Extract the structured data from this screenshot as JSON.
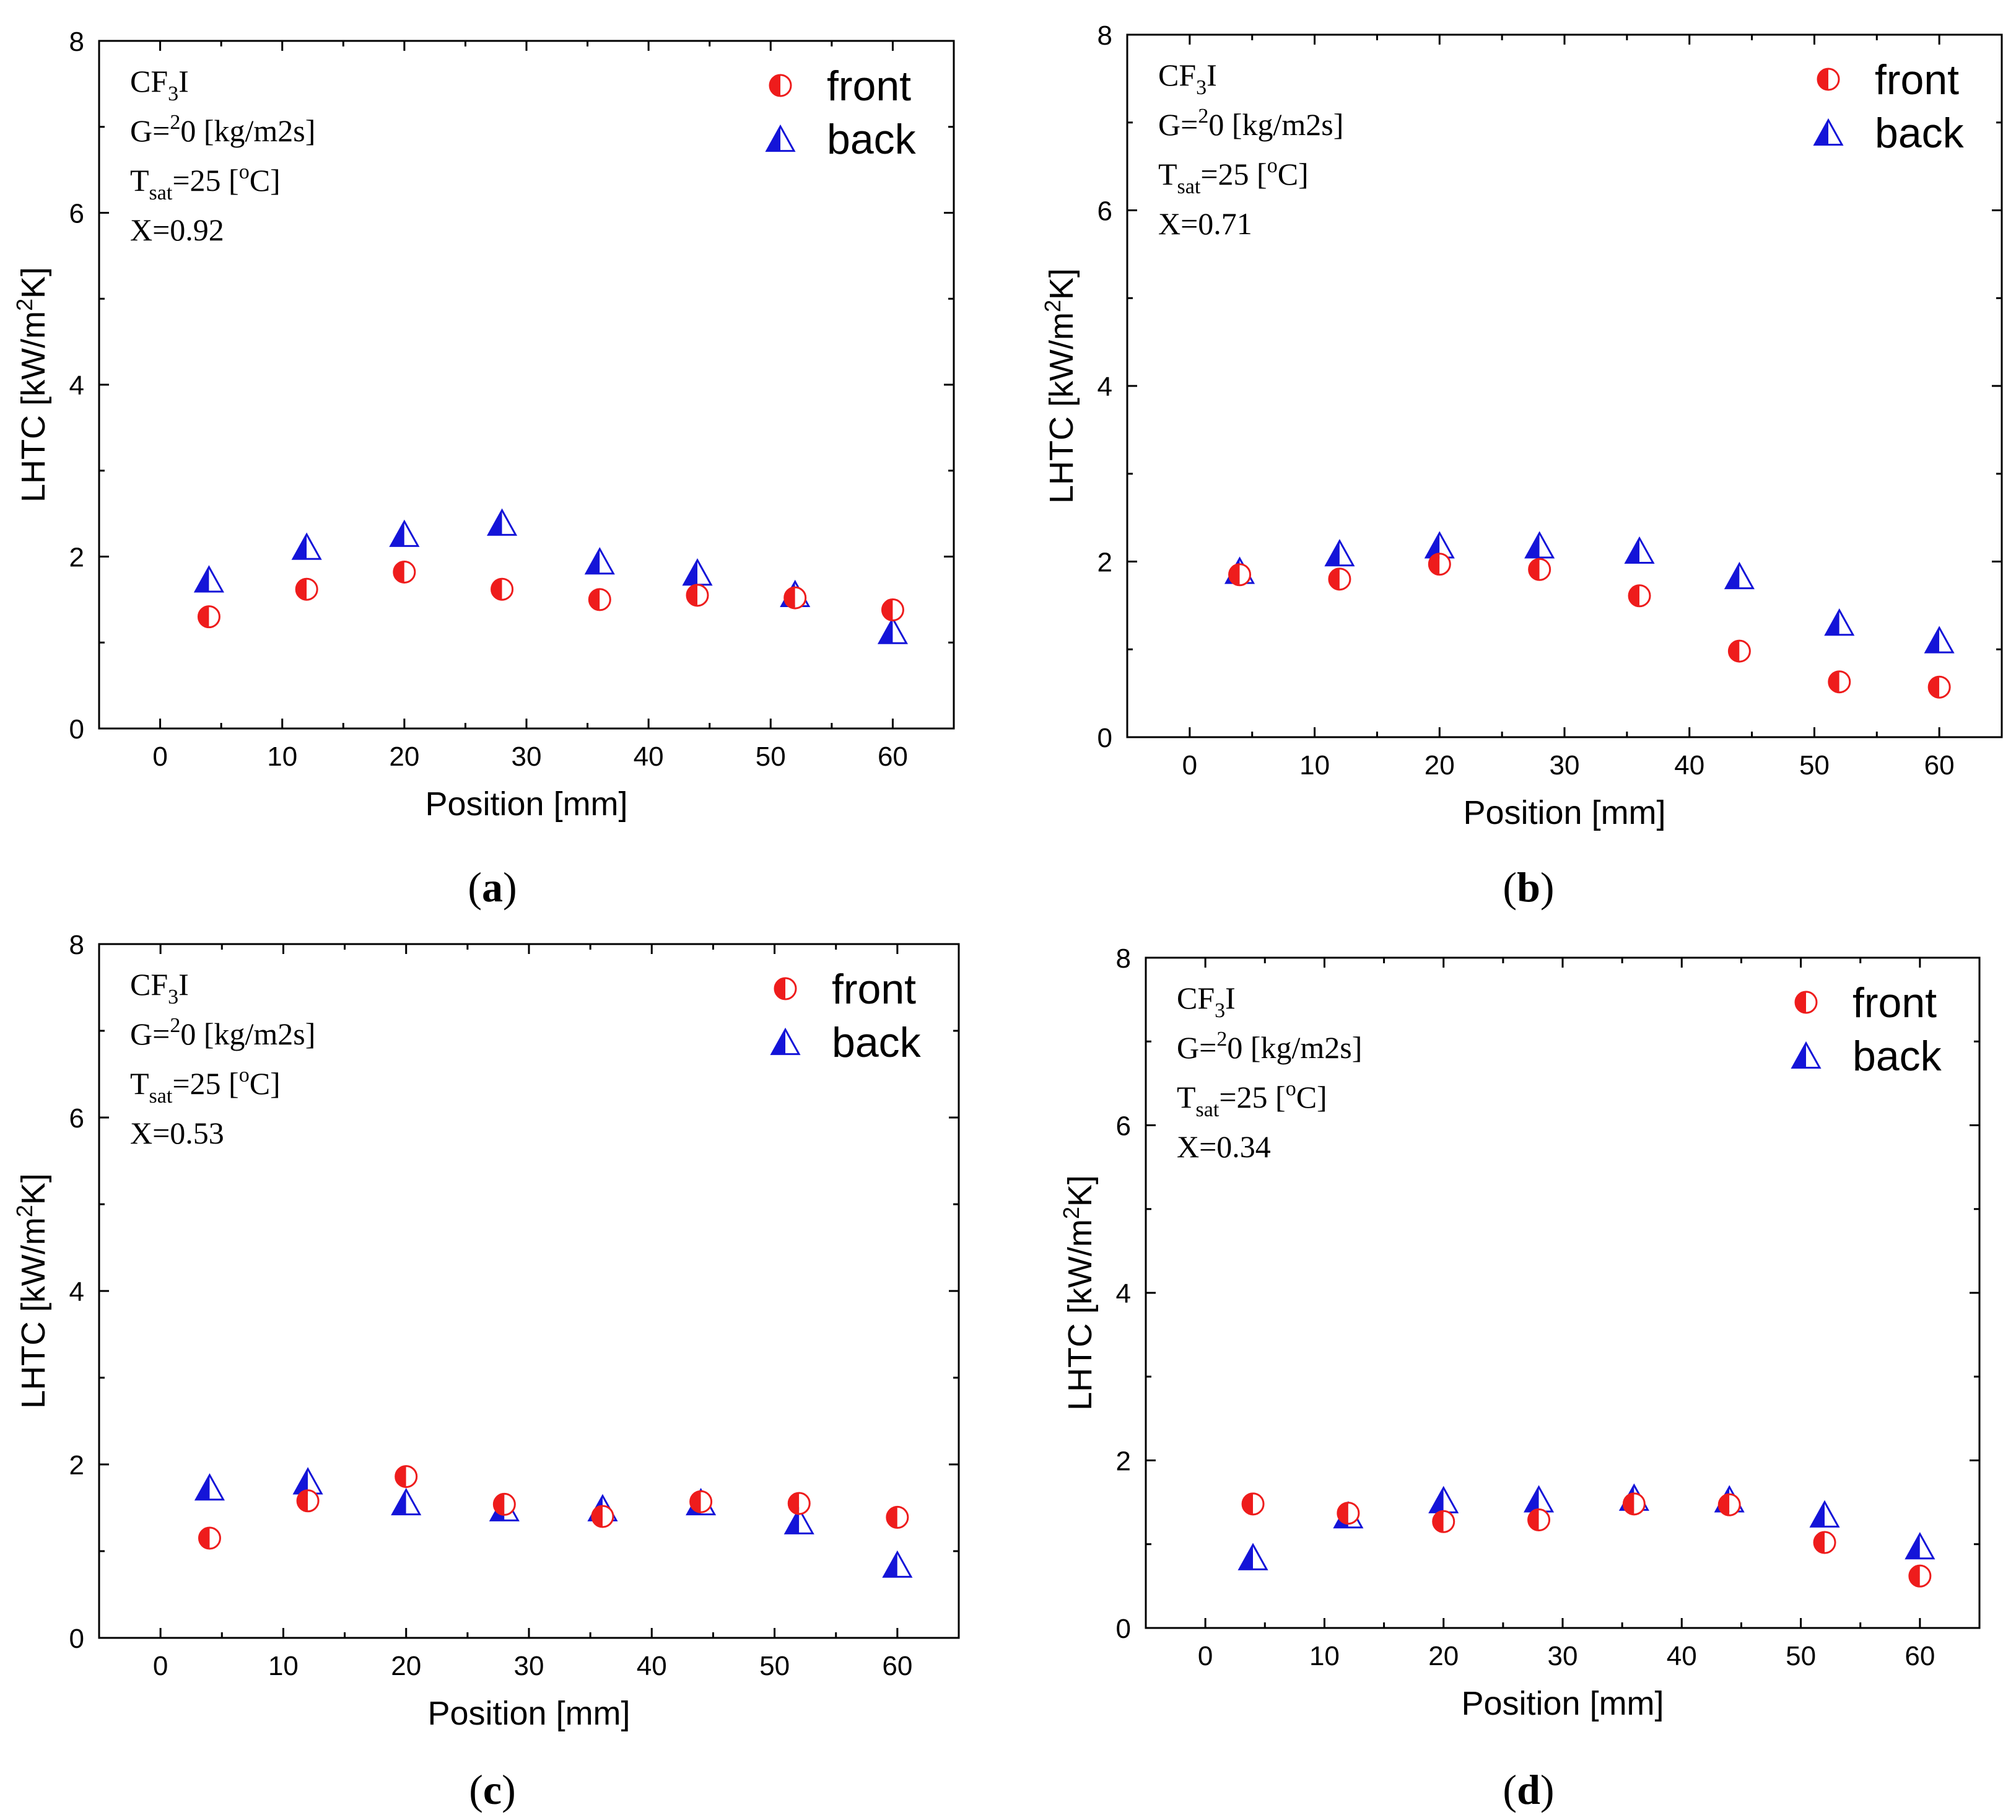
{
  "figure": {
    "series_names": [
      "front",
      "back"
    ],
    "colors": {
      "front": "#ee1c1c",
      "back": "#1414d8"
    },
    "xlabel": "Position [mm]",
    "ylabel": "LHTC [kW/m2K]"
  },
  "chart_data": [
    {
      "type": "scatter",
      "panel": "a",
      "caption": "a",
      "annotations": {
        "fluid": "CF3I",
        "mass_flux": "G=20 [kg/m2s]",
        "tsat": "Tsat=25 [oC]",
        "quality": "X=0.92"
      },
      "xlabel": "Position [mm]",
      "ylabel": "LHTC [kW/m2K]",
      "xlim": [
        -5,
        65
      ],
      "ylim": [
        0,
        8
      ],
      "xticks": [
        0,
        10,
        20,
        30,
        40,
        50,
        60
      ],
      "yticks": [
        0,
        2,
        4,
        6,
        8
      ],
      "legend": [
        "front",
        "back"
      ],
      "legend_position": "top-right",
      "series": [
        {
          "name": "front",
          "marker": "half-filled-circle",
          "x": [
            4,
            12,
            20,
            28,
            36,
            44,
            52,
            60
          ],
          "y": [
            1.3,
            1.62,
            1.82,
            1.62,
            1.5,
            1.55,
            1.52,
            1.38
          ]
        },
        {
          "name": "back",
          "marker": "half-filled-triangle",
          "x": [
            4,
            12,
            20,
            28,
            36,
            44,
            52,
            60
          ],
          "y": [
            1.72,
            2.1,
            2.25,
            2.38,
            1.93,
            1.8,
            1.55,
            1.12
          ]
        }
      ]
    },
    {
      "type": "scatter",
      "panel": "b",
      "caption": "b",
      "annotations": {
        "fluid": "CF3I",
        "mass_flux": "G=20 [kg/m2s]",
        "tsat": "Tsat=25 [oC]",
        "quality": "X=0.71"
      },
      "xlabel": "Position [mm]",
      "ylabel": "LHTC [kW/m2K]",
      "xlim": [
        -5,
        65
      ],
      "ylim": [
        0,
        8
      ],
      "xticks": [
        0,
        10,
        20,
        30,
        40,
        50,
        60
      ],
      "yticks": [
        0,
        2,
        4,
        6,
        8
      ],
      "legend": [
        "front",
        "back"
      ],
      "legend_position": "top-right",
      "series": [
        {
          "name": "front",
          "marker": "half-filled-circle",
          "x": [
            4,
            12,
            20,
            28,
            36,
            44,
            52,
            60
          ],
          "y": [
            1.85,
            1.8,
            1.97,
            1.91,
            1.61,
            0.98,
            0.63,
            0.57
          ]
        },
        {
          "name": "back",
          "marker": "half-filled-triangle",
          "x": [
            4,
            12,
            20,
            28,
            36,
            44,
            52,
            60
          ],
          "y": [
            1.88,
            2.08,
            2.17,
            2.17,
            2.11,
            1.82,
            1.29,
            1.09
          ]
        }
      ]
    },
    {
      "type": "scatter",
      "panel": "c",
      "caption": "c",
      "annotations": {
        "fluid": "CF3I",
        "mass_flux": "G=20 [kg/m2s]",
        "tsat": "Tsat=25 [oC]",
        "quality": "X=0.53"
      },
      "xlabel": "Position [mm]",
      "ylabel": "LHTC [kW/m2K]",
      "xlim": [
        -5,
        65
      ],
      "ylim": [
        0,
        8
      ],
      "xticks": [
        0,
        10,
        20,
        30,
        40,
        50,
        60
      ],
      "yticks": [
        0,
        2,
        4,
        6,
        8
      ],
      "legend": [
        "front",
        "back"
      ],
      "legend_position": "top-right",
      "series": [
        {
          "name": "front",
          "marker": "half-filled-circle",
          "x": [
            4,
            12,
            20,
            28,
            36,
            44,
            52,
            60
          ],
          "y": [
            1.15,
            1.58,
            1.86,
            1.54,
            1.4,
            1.57,
            1.55,
            1.39
          ]
        },
        {
          "name": "back",
          "marker": "half-filled-triangle",
          "x": [
            4,
            12,
            20,
            28,
            36,
            44,
            52,
            60
          ],
          "y": [
            1.72,
            1.79,
            1.55,
            1.48,
            1.48,
            1.55,
            1.33,
            0.83
          ]
        }
      ]
    },
    {
      "type": "scatter",
      "panel": "d",
      "caption": "d",
      "annotations": {
        "fluid": "CF3I",
        "mass_flux": "G=20 [kg/m2s]",
        "tsat": "Tsat=25 [oC]",
        "quality": "X=0.34"
      },
      "xlabel": "Position [mm]",
      "ylabel": "LHTC [kW/m2K]",
      "xlim": [
        -5,
        65
      ],
      "ylim": [
        0,
        8
      ],
      "xticks": [
        0,
        10,
        20,
        30,
        40,
        50,
        60
      ],
      "yticks": [
        0,
        2,
        4,
        6,
        8
      ],
      "legend": [
        "front",
        "back"
      ],
      "legend_position": "top-right",
      "series": [
        {
          "name": "front",
          "marker": "half-filled-circle",
          "x": [
            4,
            12,
            20,
            28,
            36,
            44,
            52,
            60
          ],
          "y": [
            1.48,
            1.37,
            1.27,
            1.29,
            1.48,
            1.47,
            1.02,
            0.62
          ]
        },
        {
          "name": "back",
          "marker": "half-filled-triangle",
          "x": [
            4,
            12,
            20,
            28,
            36,
            44,
            52,
            60
          ],
          "y": [
            0.83,
            1.33,
            1.51,
            1.52,
            1.54,
            1.52,
            1.34,
            0.96
          ]
        }
      ]
    }
  ]
}
